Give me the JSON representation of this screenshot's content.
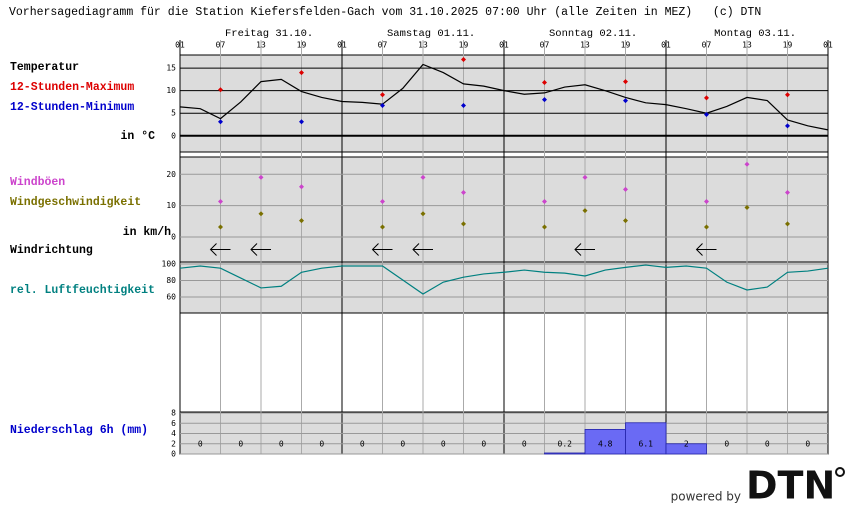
{
  "header": {
    "title": "Vorhersagediagramm für die Station Kiefersfelden-Gach vom 31.10.2025 07:00 Uhr (alle Zeiten in MEZ)   (c) DTN",
    "days": [
      "Freitag 31.10.",
      "Samstag 01.11.",
      "Sonntag 02.11.",
      "Montag 03.11."
    ],
    "xlim": [
      0,
      96
    ],
    "xticks": [
      {
        "value": 0,
        "label": "01"
      },
      {
        "value": 6,
        "label": "07"
      },
      {
        "value": 12,
        "label": "13"
      },
      {
        "value": 18,
        "label": "19"
      },
      {
        "value": 24,
        "label": "01"
      },
      {
        "value": 30,
        "label": "07"
      },
      {
        "value": 36,
        "label": "13"
      },
      {
        "value": 42,
        "label": "19"
      },
      {
        "value": 48,
        "label": "01"
      },
      {
        "value": 54,
        "label": "07"
      },
      {
        "value": 60,
        "label": "13"
      },
      {
        "value": 66,
        "label": "19"
      },
      {
        "value": 72,
        "label": "01"
      },
      {
        "value": 78,
        "label": "07"
      },
      {
        "value": 84,
        "label": "13"
      },
      {
        "value": 90,
        "label": "19"
      },
      {
        "value": 96,
        "label": "01"
      }
    ]
  },
  "chart_data": [
    {
      "type": "line",
      "y_label": "in °C",
      "ylim": [
        -3.6,
        17.9
      ],
      "yticks": [
        0,
        5,
        10,
        15
      ],
      "series": [
        {
          "name": "Temperatur",
          "color": "#000000",
          "x": [
            0,
            3,
            6,
            9,
            12,
            15,
            18,
            21,
            24,
            27,
            30,
            33,
            36,
            39,
            42,
            45,
            48,
            51,
            54,
            57,
            60,
            63,
            66,
            69,
            72,
            75,
            78,
            81,
            84,
            87,
            90,
            93,
            96
          ],
          "values": [
            6.4,
            6.0,
            3.8,
            7.5,
            12,
            12.5,
            9.8,
            8.5,
            7.6,
            7.4,
            7.0,
            10.5,
            15.8,
            14,
            11.5,
            11,
            10,
            9.2,
            9.5,
            10.8,
            11.3,
            10,
            8.5,
            7.3,
            6.9,
            6.0,
            5.0,
            6.5,
            8.5,
            7.8,
            3.5,
            2.2,
            1.3
          ]
        },
        {
          "name": "12-Stunden-Maximum",
          "type": "scatter",
          "color": "#dd0000",
          "x": [
            6,
            18,
            30,
            42,
            54,
            66,
            78,
            90
          ],
          "values": [
            10.2,
            14,
            9.1,
            16.9,
            11.8,
            12,
            8.4,
            9.1
          ]
        },
        {
          "name": "12-Stunden-Minimum",
          "type": "scatter",
          "color": "#0000cc",
          "x": [
            6,
            18,
            30,
            42,
            54,
            66,
            78,
            90
          ],
          "values": [
            3.1,
            3.1,
            6.7,
            6.7,
            8,
            7.8,
            4.7,
            2.2
          ]
        }
      ]
    },
    {
      "type": "scatter",
      "y_label": "in km/h",
      "ylim": [
        0,
        25.5
      ],
      "yticks": [
        0,
        10,
        20
      ],
      "series": [
        {
          "name": "Windböen",
          "color": "#cc44cc",
          "x": [
            6,
            12,
            18,
            30,
            36,
            42,
            54,
            60,
            66,
            78,
            84,
            90
          ],
          "values": [
            11.3,
            19,
            16,
            11.3,
            19,
            14.2,
            11.3,
            19,
            15.2,
            11.3,
            23.2,
            14.2
          ]
        },
        {
          "name": "Windgeschwindigkeit",
          "color": "#7a7000",
          "x": [
            6,
            12,
            18,
            30,
            36,
            42,
            54,
            60,
            66,
            78,
            84,
            90
          ],
          "values": [
            3.2,
            7.4,
            5.2,
            3.2,
            7.4,
            4.2,
            3.2,
            8.4,
            5.2,
            3.2,
            9.4,
            4.2
          ]
        }
      ]
    },
    {
      "type": "wind_arrows",
      "label": "Windrichtung",
      "color": "#000000",
      "x": [
        6,
        12,
        30,
        36,
        60,
        78
      ],
      "values": [
        90,
        90,
        90,
        90,
        90,
        90
      ]
    },
    {
      "type": "line",
      "ylim": [
        40.5,
        102.5
      ],
      "yticks": [
        60,
        80,
        100
      ],
      "series": [
        {
          "name": "rel. Luftfeuchtigkeit",
          "color": "#008080",
          "x": [
            0,
            3,
            6,
            9,
            12,
            15,
            18,
            21,
            24,
            27,
            30,
            33,
            36,
            39,
            42,
            45,
            48,
            51,
            54,
            57,
            60,
            63,
            66,
            69,
            72,
            75,
            78,
            81,
            84,
            87,
            90,
            93,
            96
          ],
          "values": [
            95,
            97.6,
            95,
            83,
            71,
            73,
            90,
            95,
            97.6,
            97.6,
            97.6,
            80.6,
            63.6,
            78,
            84,
            88,
            90,
            92.7,
            90,
            89,
            85.5,
            92.7,
            96,
            98.8,
            96,
            97.6,
            95,
            78,
            68.5,
            72,
            90,
            91.5,
            95
          ]
        }
      ]
    },
    {
      "type": "histogram",
      "label": "Niederschlag 6h (mm)",
      "label_color": "#0000cc",
      "color": "#6a6af4",
      "ylim": [
        0,
        8.2
      ],
      "yticks": [
        0,
        2,
        4,
        6,
        8
      ],
      "bins": [
        0,
        6,
        12,
        18,
        24,
        30,
        36,
        42,
        48,
        54,
        60,
        66,
        72,
        78,
        84,
        90,
        96
      ],
      "values": [
        0,
        0,
        0,
        0,
        0,
        0,
        0,
        0,
        0,
        0.2,
        4.8,
        6.1,
        2,
        0,
        0,
        0
      ]
    }
  ],
  "footer": {
    "powered_by": "powered by",
    "logo": "DTN"
  }
}
